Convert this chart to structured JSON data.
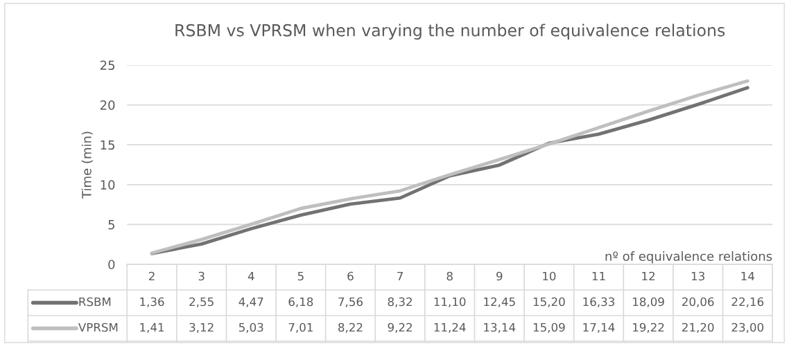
{
  "chart_data": {
    "type": "line",
    "title": "RSBM vs VPRSM when varying the number of equivalence relations",
    "xlabel": "nº of equivalence relations",
    "ylabel": "Time (min)",
    "categories": [
      "2",
      "3",
      "4",
      "5",
      "6",
      "7",
      "8",
      "9",
      "10",
      "11",
      "12",
      "13",
      "14"
    ],
    "series": [
      {
        "name": "RSBM",
        "color": "#767171",
        "values": [
          1.36,
          2.55,
          4.47,
          6.18,
          7.56,
          8.32,
          11.1,
          12.45,
          15.2,
          16.33,
          18.09,
          20.06,
          22.16
        ],
        "value_labels": [
          "1,36",
          "2,55",
          "4,47",
          "6,18",
          "7,56",
          "8,32",
          "11,10",
          "12,45",
          "15,20",
          "16,33",
          "18,09",
          "20,06",
          "22,16"
        ]
      },
      {
        "name": "VPRSM",
        "color": "#bfbfbf",
        "values": [
          1.41,
          3.12,
          5.03,
          7.01,
          8.22,
          9.22,
          11.24,
          13.14,
          15.09,
          17.14,
          19.22,
          21.2,
          23.0
        ],
        "value_labels": [
          "1,41",
          "3,12",
          "5,03",
          "7,01",
          "8,22",
          "9,22",
          "11,24",
          "13,14",
          "15,09",
          "17,14",
          "19,22",
          "21,20",
          "23,00"
        ]
      }
    ],
    "ylim": [
      0,
      25
    ],
    "yticks": [
      0,
      5,
      10,
      15,
      20,
      25
    ],
    "grid": "y",
    "legend": "bottom",
    "marker": "none",
    "line_style": "solid"
  }
}
